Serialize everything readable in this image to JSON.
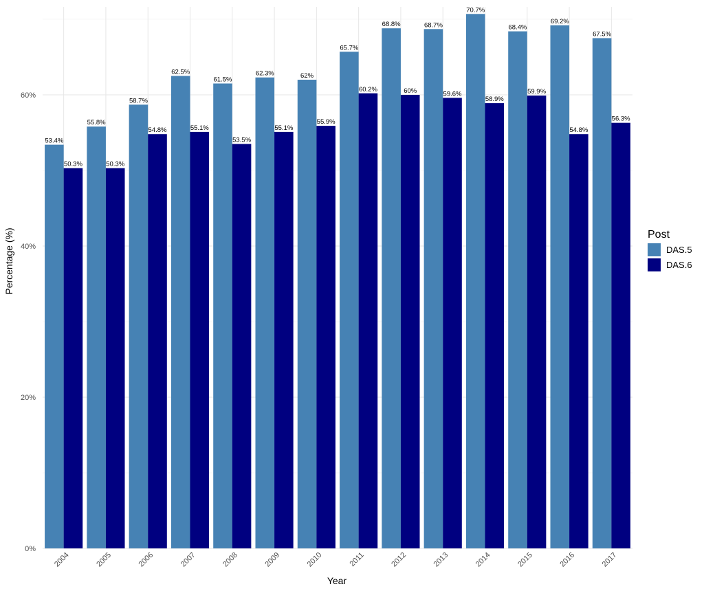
{
  "chart_data": {
    "type": "bar",
    "title": "",
    "xlabel": "Year",
    "ylabel": "Percentage (%)",
    "ylim": [
      0,
      72
    ],
    "yticks": [
      0,
      20,
      40,
      60
    ],
    "ytick_labels": [
      "0%",
      "20%",
      "40%",
      "60%"
    ],
    "categories": [
      "2004",
      "2005",
      "2006",
      "2007",
      "2008",
      "2009",
      "2010",
      "2011",
      "2012",
      "2013",
      "2014",
      "2015",
      "2016",
      "2017"
    ],
    "legend_title": "Post",
    "legend_position": "right",
    "grid": true,
    "series": [
      {
        "name": "DAS.5",
        "color": "#4682B4",
        "values": [
          53.4,
          55.8,
          58.7,
          62.5,
          61.5,
          62.3,
          62.0,
          65.7,
          68.8,
          68.7,
          70.7,
          68.4,
          69.2,
          67.5
        ],
        "labels": [
          "53.4%",
          "55.8%",
          "58.7%",
          "62.5%",
          "61.5%",
          "62.3%",
          "62%",
          "65.7%",
          "68.8%",
          "68.7%",
          "70.7%",
          "68.4%",
          "69.2%",
          "67.5%"
        ]
      },
      {
        "name": "DAS.6",
        "color": "#000080",
        "values": [
          50.3,
          50.3,
          54.8,
          55.1,
          53.5,
          55.1,
          55.9,
          60.2,
          60.0,
          59.6,
          58.9,
          59.9,
          54.8,
          56.3
        ],
        "labels": [
          "50.3%",
          "50.3%",
          "54.8%",
          "55.1%",
          "53.5%",
          "55.1%",
          "55.9%",
          "60.2%",
          "60%",
          "59.6%",
          "58.9%",
          "59.9%",
          "54.8%",
          "56.3%"
        ]
      }
    ]
  }
}
